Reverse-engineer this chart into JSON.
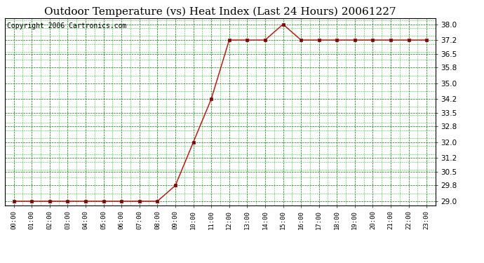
{
  "title": "Outdoor Temperature (vs) Heat Index (Last 24 Hours) 20061227",
  "copyright": "Copyright 2006 Cartronics.com",
  "x_labels": [
    "00:00",
    "01:00",
    "02:00",
    "03:00",
    "04:00",
    "05:00",
    "06:00",
    "07:00",
    "08:00",
    "09:00",
    "10:00",
    "11:00",
    "12:00",
    "13:00",
    "14:00",
    "15:00",
    "16:00",
    "17:00",
    "18:00",
    "19:00",
    "20:00",
    "21:00",
    "22:00",
    "23:00"
  ],
  "y_values": [
    29.0,
    29.0,
    29.0,
    29.0,
    29.0,
    29.0,
    29.0,
    29.0,
    29.0,
    29.8,
    32.0,
    34.2,
    37.2,
    37.2,
    37.2,
    38.0,
    37.2,
    37.2,
    37.2,
    37.2,
    37.2,
    37.2,
    37.2,
    37.2
  ],
  "ylim": [
    28.8,
    38.3
  ],
  "yticks": [
    29.0,
    29.8,
    30.5,
    31.2,
    32.0,
    32.8,
    33.5,
    34.2,
    35.0,
    35.8,
    36.5,
    37.2,
    38.0
  ],
  "line_color": "#cc0000",
  "marker_color": "#880000",
  "bg_color": "#ffffff",
  "grid_color_major": "#007700",
  "grid_color_minor": "#00bb00",
  "title_fontsize": 11,
  "copyright_fontsize": 7
}
